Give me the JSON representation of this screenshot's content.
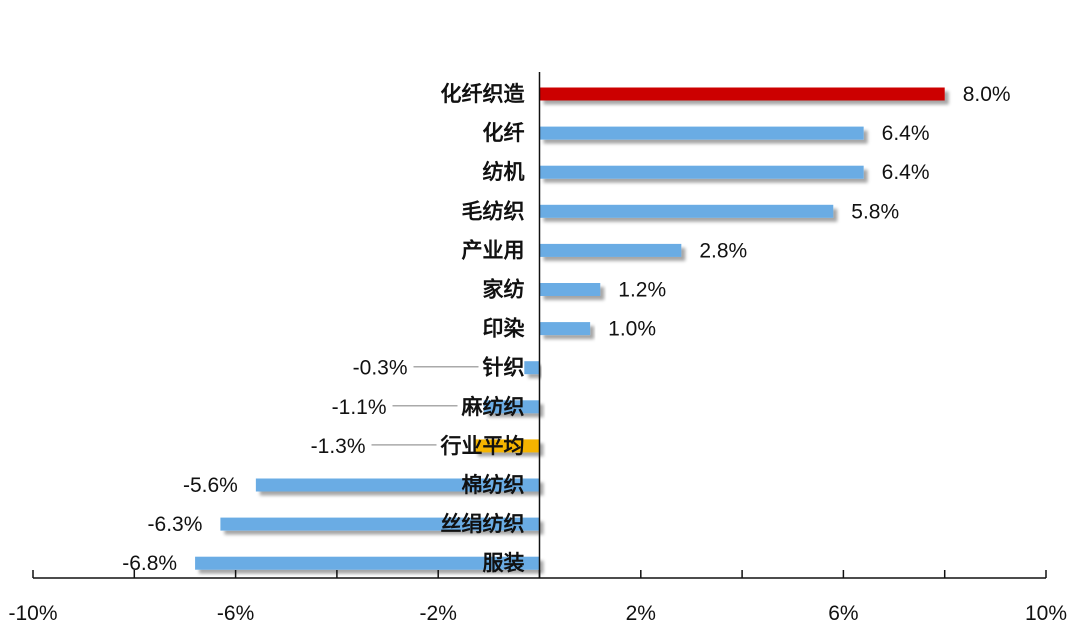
{
  "chart_data": {
    "type": "bar",
    "orientation": "horizontal",
    "categories": [
      "化纤织造",
      "化纤",
      "纺机",
      "毛纺织",
      "产业用",
      "家纺",
      "印染",
      "针织",
      "麻纺织",
      "行业平均",
      "棉纺织",
      "丝绢纺织",
      "服装"
    ],
    "values": [
      8.0,
      6.4,
      6.4,
      5.8,
      2.8,
      1.2,
      1.0,
      -0.3,
      -1.1,
      -1.3,
      -5.6,
      -6.3,
      -6.8
    ],
    "value_labels": [
      "8.0%",
      "6.4%",
      "6.4%",
      "5.8%",
      "2.8%",
      "1.2%",
      "1.0%",
      "-0.3%",
      "-1.1%",
      "-1.3%",
      "-5.6%",
      "-6.3%",
      "-6.8%"
    ],
    "bar_colors": [
      "#cc0000",
      "#6aace4",
      "#6aace4",
      "#6aace4",
      "#6aace4",
      "#6aace4",
      "#6aace4",
      "#6aace4",
      "#6aace4",
      "#f5b400",
      "#6aace4",
      "#6aace4",
      "#6aace4"
    ],
    "xlim": [
      -10,
      10
    ],
    "xticks": [
      -10,
      -6,
      -2,
      2,
      6,
      10
    ],
    "xtick_labels": [
      "-10%",
      "-6%",
      "-2%",
      "2%",
      "6%",
      "10%"
    ],
    "title": "",
    "xlabel": "",
    "ylabel": "",
    "grid": false,
    "legend": "none"
  },
  "colors": {
    "highlight": "#cc0000",
    "default": "#6aace4",
    "average": "#f5b400",
    "axis": "#111111",
    "leader_line": "#aaaaaa"
  }
}
